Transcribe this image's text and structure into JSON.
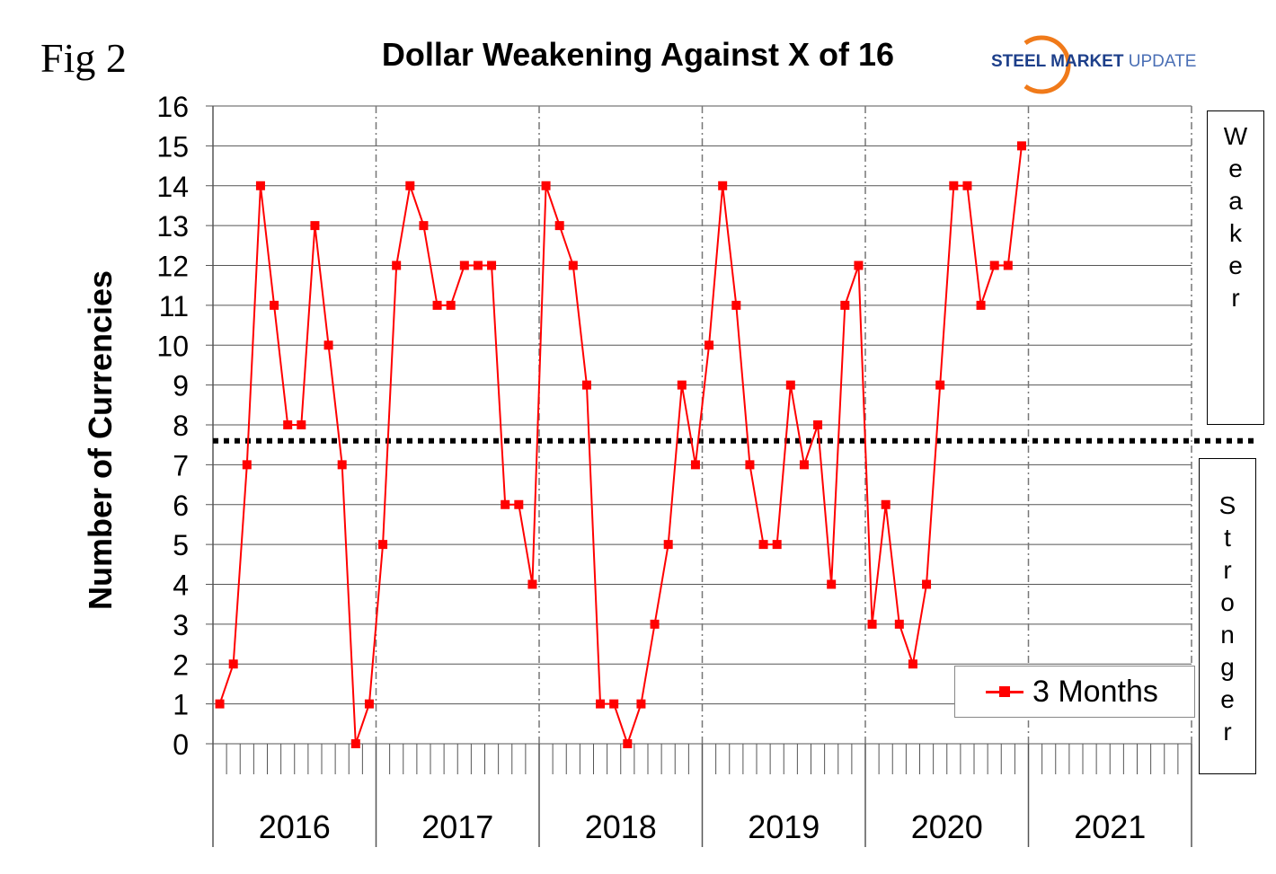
{
  "figure_label": "Fig 2",
  "logo": {
    "text_1": "STEEL",
    "text_2": "MARKET",
    "text_3": "UPDATE"
  },
  "side_labels": {
    "upper": "Weaker",
    "lower": "Stronger"
  },
  "chart_data": {
    "type": "line",
    "title": "Dollar Weakening Against X of 16",
    "xlabel": "",
    "ylabel": "Number of Currencies",
    "ylim": [
      0,
      16
    ],
    "yticks": [
      0,
      1,
      2,
      3,
      4,
      5,
      6,
      7,
      8,
      9,
      10,
      11,
      12,
      13,
      14,
      15,
      16
    ],
    "x_year_labels": [
      "2016",
      "2017",
      "2018",
      "2019",
      "2020",
      "2021"
    ],
    "x_unit": "month",
    "grid": true,
    "legend_position": "bottom-right",
    "reference_line": {
      "value": 7.6,
      "style": "dotted"
    },
    "series": [
      {
        "name": "3 Months",
        "color": "#ff0000",
        "start": "2016-01",
        "values": [
          1,
          2,
          7,
          14,
          11,
          8,
          8,
          13,
          10,
          7,
          0,
          1,
          5,
          12,
          14,
          13,
          11,
          11,
          12,
          12,
          12,
          6,
          6,
          4,
          14,
          13,
          12,
          9,
          1,
          1,
          0,
          1,
          3,
          5,
          9,
          7,
          10,
          14,
          11,
          7,
          5,
          5,
          9,
          7,
          8,
          4,
          11,
          12,
          3,
          6,
          3,
          2,
          4,
          9,
          14,
          14,
          11,
          12,
          12,
          15
        ]
      }
    ]
  }
}
